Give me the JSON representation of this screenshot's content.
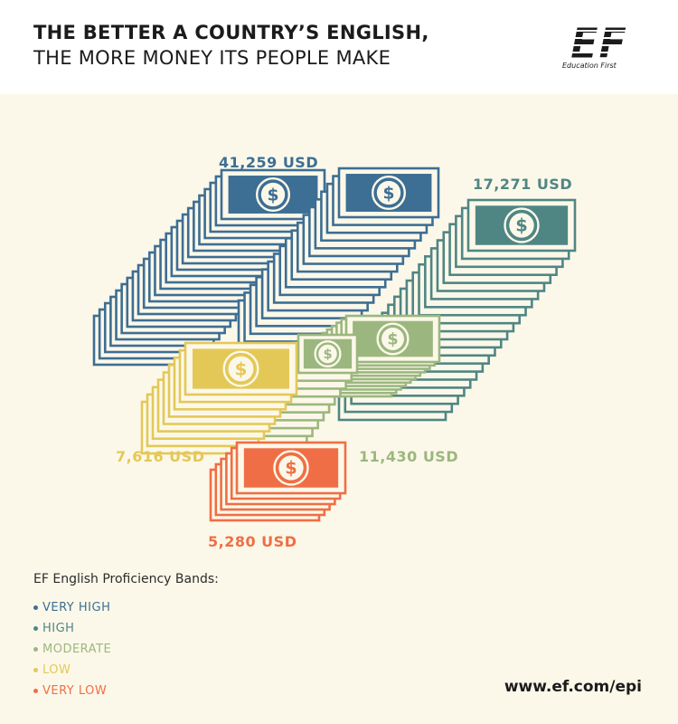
{
  "header": {
    "title_line1": "THE BETTER A COUNTRY’S ENGLISH,",
    "title_line2": "THE MORE MONEY ITS PEOPLE MAKE",
    "logo_text": "EF",
    "logo_caption": "Education First"
  },
  "colors": {
    "very_high": "#3d6e94",
    "high": "#4f8684",
    "moderate": "#9bb77f",
    "low": "#e4c857",
    "very_low": "#f06e45",
    "background": "#fcf8e9",
    "header_bg": "#ffffff"
  },
  "stacks": [
    {
      "id": "very-high",
      "band": "VERY HIGH",
      "amount": "41,259 USD",
      "color": "#3d6e94",
      "icon": "dollar-icon"
    },
    {
      "id": "high",
      "band": "HIGH",
      "amount": "17,271 USD",
      "color": "#4f8684",
      "icon": "dollar-icon"
    },
    {
      "id": "moderate",
      "band": "MODERATE",
      "amount": "11,430 USD",
      "color": "#9bb77f",
      "icon": "dollar-icon"
    },
    {
      "id": "low",
      "band": "LOW",
      "amount": "7,616 USD",
      "color": "#e4c857",
      "icon": "dollar-icon"
    },
    {
      "id": "very-low",
      "band": "VERY LOW",
      "amount": "5,280 USD",
      "color": "#f06e45",
      "icon": "dollar-icon"
    }
  ],
  "legend": {
    "title": "EF English Proficiency Bands:",
    "items": [
      {
        "label": "VERY HIGH",
        "color": "#3d6e94"
      },
      {
        "label": "HIGH",
        "color": "#4f8684"
      },
      {
        "label": "MODERATE",
        "color": "#9bb77f"
      },
      {
        "label": "LOW",
        "color": "#e4c857"
      },
      {
        "label": "VERY LOW",
        "color": "#f06e45"
      }
    ]
  },
  "footer": {
    "url": "www.ef.com/epi"
  }
}
